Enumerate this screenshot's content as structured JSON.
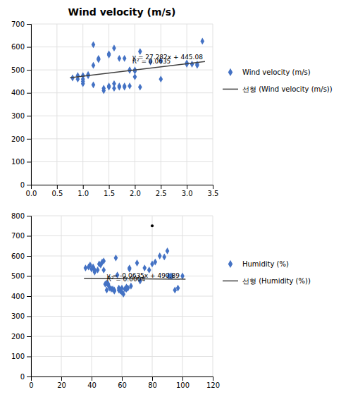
{
  "chart_data": [
    {
      "type": "scatter",
      "title": "Wind velocity (m/s)",
      "series": [
        {
          "name": "Wind velocity (m/s)",
          "type": "scatter",
          "color": "#4472C4",
          "marker": "diamond",
          "x": [
            0.8,
            0.9,
            0.9,
            1.0,
            1.0,
            1.0,
            1.0,
            1.1,
            1.1,
            1.2,
            1.2,
            1.2,
            1.3,
            1.3,
            1.4,
            1.4,
            1.5,
            1.5,
            1.5,
            1.5,
            1.6,
            1.6,
            1.6,
            1.7,
            1.7,
            1.7,
            1.8,
            1.8,
            1.8,
            1.9,
            1.9,
            1.9,
            2.0,
            2.0,
            2.0,
            2.1,
            2.1,
            2.3,
            2.5,
            2.5,
            3.0,
            3.0,
            3.1,
            3.2,
            3.2,
            3.3
          ],
          "values": [
            465,
            460,
            475,
            460,
            450,
            440,
            475,
            480,
            475,
            610,
            520,
            435,
            545,
            550,
            420,
            410,
            570,
            565,
            430,
            425,
            595,
            440,
            420,
            550,
            430,
            425,
            550,
            430,
            425,
            500,
            498,
            430,
            495,
            500,
            470,
            580,
            425,
            535,
            540,
            460,
            525,
            530,
            525,
            520,
            525,
            625
          ]
        },
        {
          "name": "선형 (Wind velocity (m/s))",
          "type": "line",
          "color": "#404040",
          "line_style": "solid",
          "x": [
            0.75,
            3.35
          ],
          "values": [
            465.5415,
            536.4747
          ]
        }
      ],
      "annotations": [
        {
          "text": "y = 27.282x + 445.08",
          "x": 1.95,
          "y": 548
        },
        {
          "text": "R² = 0.0635",
          "x": 1.95,
          "y": 528
        }
      ],
      "xlim": [
        0,
        3.5
      ],
      "xticks": [
        {
          "value": 0,
          "label": "0.0"
        },
        0.5,
        {
          "value": 1,
          "label": "1.0"
        },
        1.5,
        {
          "value": 2,
          "label": "2.0"
        },
        2.5,
        {
          "value": 3,
          "label": "3.0"
        },
        3.5
      ],
      "ylim": [
        0,
        700
      ],
      "yticks": [
        0,
        100,
        200,
        300,
        400,
        500,
        600,
        700
      ],
      "grid": true,
      "legend": "right"
    },
    {
      "type": "scatter",
      "series": [
        {
          "name": "Humidity (%)",
          "type": "scatter",
          "color": "#4472C4",
          "marker": "diamond",
          "x": [
            36,
            38,
            39,
            40,
            41,
            42,
            42,
            44,
            45,
            46,
            47,
            48,
            48,
            49,
            50,
            50,
            51,
            51,
            52,
            53,
            54,
            55,
            55,
            56,
            57,
            58,
            58,
            59,
            60,
            60,
            61,
            62,
            63,
            63,
            64,
            65,
            65,
            66,
            70,
            72,
            75,
            78,
            80,
            82,
            85,
            88,
            90,
            91,
            92,
            93,
            95,
            97,
            100
          ],
          "values": [
            540,
            545,
            555,
            535,
            545,
            530,
            520,
            530,
            560,
            555,
            570,
            575,
            530,
            460,
            465,
            430,
            460,
            455,
            440,
            435,
            435,
            430,
            425,
            590,
            505,
            440,
            430,
            425,
            420,
            440,
            410,
            435,
            435,
            445,
            440,
            540,
            535,
            450,
            565,
            475,
            540,
            530,
            560,
            570,
            600,
            595,
            625,
            500,
            500,
            500,
            430,
            440,
            500
          ]
        },
        {
          "type": "scatter",
          "color": "#000000",
          "marker": "point",
          "x": [
            80
          ],
          "values": [
            750
          ]
        },
        {
          "name": "선형 (Humidity (%))",
          "type": "line",
          "color": "#404040",
          "line_style": "solid",
          "x": [
            35,
            102
          ],
          "values": [
            488.6675,
            484.413
          ]
        }
      ],
      "annotations": [
        {
          "text": "y = -0.0635x + 490.89",
          "x": 50,
          "y": 492
        },
        {
          "text": "R² = 0.0004",
          "x": 50,
          "y": 472
        }
      ],
      "xlim": [
        0,
        120
      ],
      "xticks": [
        0,
        20,
        40,
        60,
        80,
        100,
        120
      ],
      "ylim": [
        0,
        800
      ],
      "yticks": [
        0,
        100,
        200,
        300,
        400,
        500,
        600,
        700,
        800
      ],
      "grid": true,
      "legend": "right"
    }
  ]
}
